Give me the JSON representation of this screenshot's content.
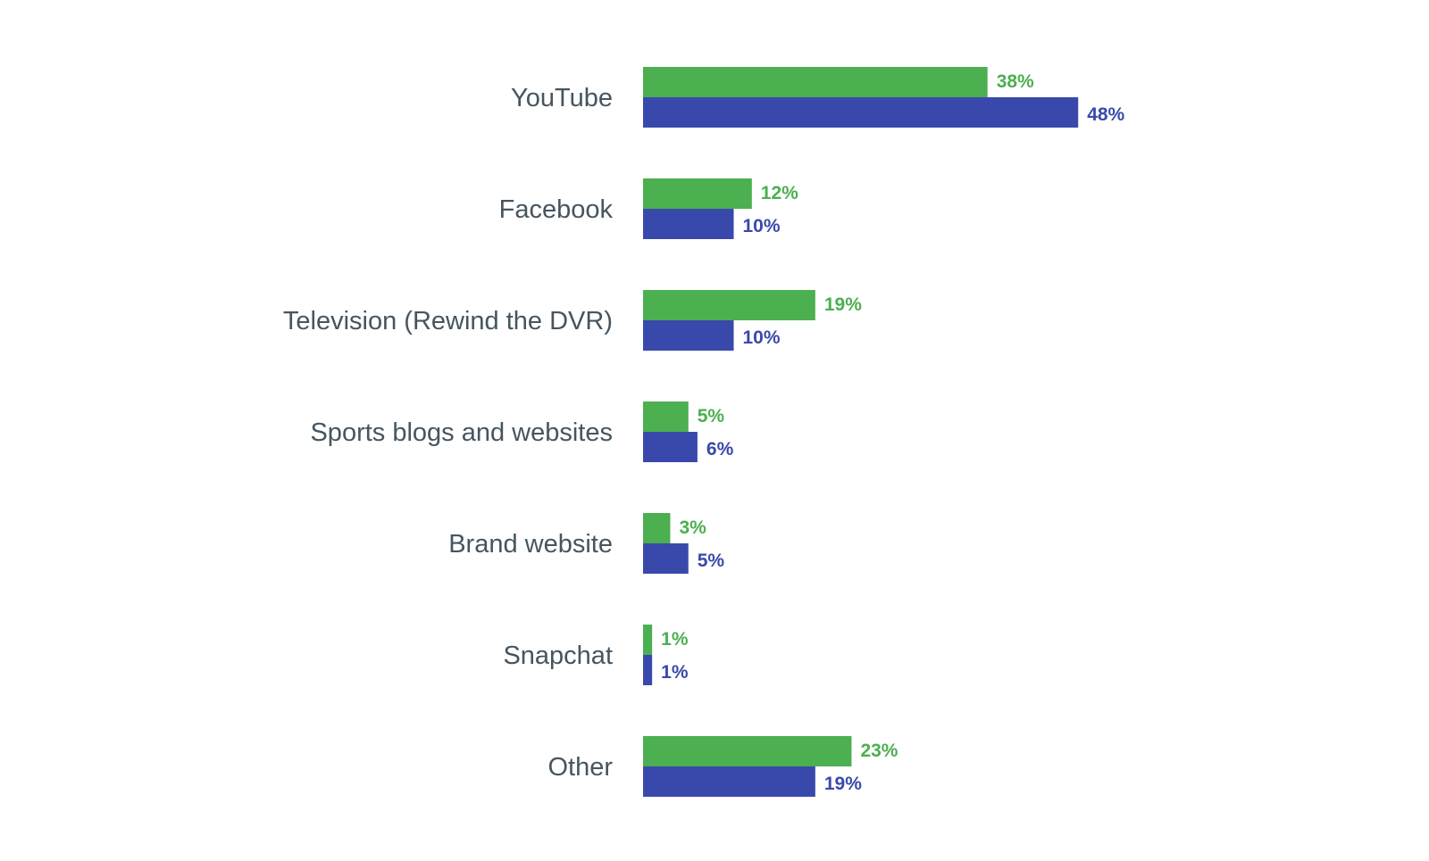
{
  "chart_data": {
    "type": "bar",
    "orientation": "horizontal",
    "categories": [
      "YouTube",
      "Facebook",
      "Television (Rewind the DVR)",
      "Sports blogs and websites",
      "Brand website",
      "Snapchat",
      "Other"
    ],
    "series": [
      {
        "color": "#4caf50",
        "values": [
          38,
          12,
          19,
          5,
          3,
          1,
          23
        ],
        "labels": [
          "38%",
          "12%",
          "19%",
          "5%",
          "3%",
          "1%",
          "23%"
        ]
      },
      {
        "color": "#3949ab",
        "values": [
          48,
          10,
          10,
          6,
          5,
          1,
          19
        ],
        "labels": [
          "48%",
          "10%",
          "10%",
          "6%",
          "5%",
          "1%",
          "19%"
        ]
      }
    ],
    "title": "",
    "xlabel": "",
    "ylabel": "",
    "xlim": [
      0,
      60
    ],
    "grid": false,
    "legend": "none"
  }
}
